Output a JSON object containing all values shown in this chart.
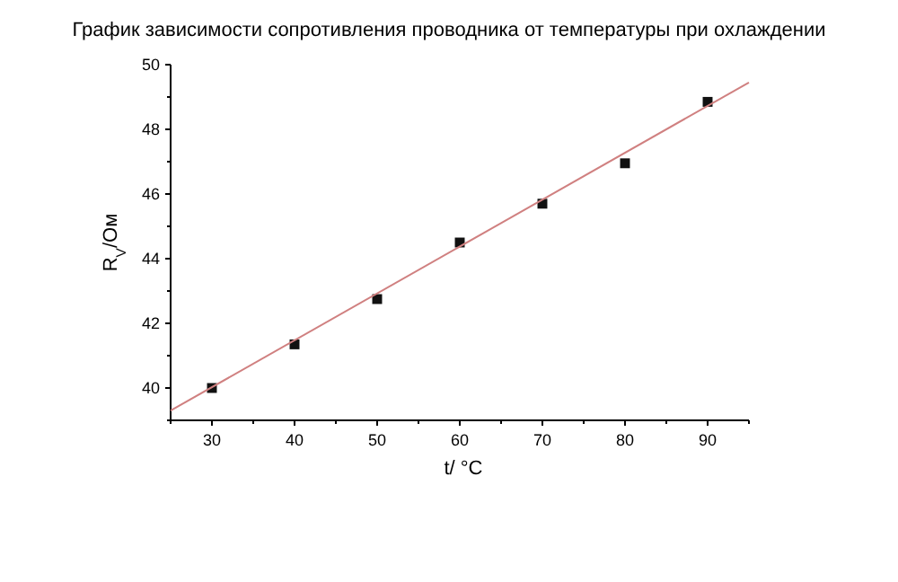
{
  "chart_data": {
    "type": "scatter",
    "title": "График зависимости сопротивления проводника от температуры при охлаждении",
    "xlabel": "t/ °C",
    "ylabel": "R$_{V}$/Ом",
    "x": [
      30,
      40,
      50,
      60,
      70,
      80,
      90
    ],
    "series": [
      {
        "color": "#111111",
        "marker": "square",
        "values": [
          40.0,
          41.35,
          42.75,
          44.5,
          45.7,
          46.95,
          48.85
        ]
      },
      {
        "type": "line",
        "marker": "none",
        "color": "#d08080",
        "x": [
          25,
          95
        ],
        "values": [
          39.3,
          49.45
        ]
      }
    ],
    "xlim": [
      25,
      95
    ],
    "ylim": [
      39,
      50
    ],
    "xticks": [
      {
        "value": 25,
        "label": null
      },
      30,
      {
        "value": 35,
        "label": null
      },
      40,
      {
        "value": 45,
        "label": null
      },
      50,
      {
        "value": 55,
        "label": null
      },
      60,
      {
        "value": 65,
        "label": null
      },
      70,
      {
        "value": 75,
        "label": null
      },
      80,
      {
        "value": 85,
        "label": null
      },
      90,
      {
        "value": 95,
        "label": null
      }
    ],
    "yticks": [
      {
        "value": 39,
        "label": null
      },
      40,
      {
        "value": 41,
        "label": null
      },
      42,
      {
        "value": 43,
        "label": null
      },
      44,
      {
        "value": 45,
        "label": null
      },
      46,
      {
        "value": 47,
        "label": null
      },
      48,
      {
        "value": 49,
        "label": null
      },
      50
    ],
    "grid": false
  }
}
